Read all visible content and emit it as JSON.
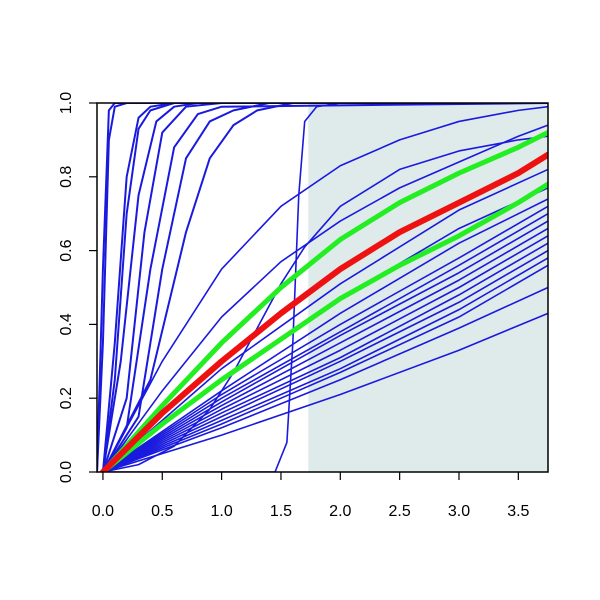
{
  "chart_data": {
    "type": "line",
    "title": "",
    "xlabel": "",
    "ylabel": "",
    "xlim": [
      -0.05,
      3.75
    ],
    "ylim": [
      0.0,
      1.0
    ],
    "xticks": [
      0.0,
      0.5,
      1.0,
      1.5,
      2.0,
      2.5,
      3.0,
      3.5
    ],
    "xtick_labels": [
      "0.0",
      "0.5",
      "1.0",
      "1.5",
      "2.0",
      "2.5",
      "3.0",
      "3.5"
    ],
    "yticks": [
      0.0,
      0.2,
      0.4,
      0.6,
      0.8,
      1.0
    ],
    "ytick_labels": [
      "0.0",
      "0.2",
      "0.4",
      "0.6",
      "0.8",
      "1.0"
    ],
    "grid": false,
    "shaded_region": {
      "x_start": 1.73,
      "x_end": 3.75,
      "color": "#dfeaea"
    },
    "colors": {
      "curves": "#1a1adf",
      "mean": "#ee1111",
      "bounds": "#22ee22",
      "axis": "#000000"
    },
    "curves": {
      "steep_sigmoid": [
        {
          "x": [
            -0.05,
            0.0,
            0.05,
            0.1,
            0.2,
            3.75
          ],
          "y": [
            0.0,
            0.55,
            0.98,
            1.0,
            1.0,
            1.0
          ]
        },
        {
          "x": [
            -0.05,
            0.0,
            0.05,
            0.1,
            0.2,
            3.75
          ],
          "y": [
            0.0,
            0.35,
            0.9,
            0.99,
            1.0,
            1.0
          ]
        }
      ],
      "fast_rise": [
        {
          "x": [
            0.0,
            0.1,
            0.2,
            0.3,
            0.4,
            0.6,
            3.75
          ],
          "y": [
            0.0,
            0.35,
            0.8,
            0.96,
            0.99,
            1.0,
            1.0
          ]
        },
        {
          "x": [
            0.0,
            0.1,
            0.2,
            0.3,
            0.4,
            0.6,
            3.75
          ],
          "y": [
            0.0,
            0.25,
            0.7,
            0.93,
            0.98,
            1.0,
            1.0
          ]
        },
        {
          "x": [
            0.0,
            0.15,
            0.3,
            0.45,
            0.6,
            0.8,
            3.75
          ],
          "y": [
            0.0,
            0.3,
            0.75,
            0.95,
            0.99,
            1.0,
            1.0
          ]
        },
        {
          "x": [
            0.0,
            0.2,
            0.35,
            0.5,
            0.7,
            1.0,
            3.75
          ],
          "y": [
            0.0,
            0.2,
            0.65,
            0.92,
            0.99,
            1.0,
            1.0
          ]
        },
        {
          "x": [
            0.0,
            0.2,
            0.4,
            0.6,
            0.8,
            1.0,
            3.75
          ],
          "y": [
            0.0,
            0.12,
            0.55,
            0.88,
            0.97,
            0.99,
            1.0
          ]
        },
        {
          "x": [
            0.0,
            0.3,
            0.5,
            0.7,
            0.9,
            1.1,
            1.4,
            3.75
          ],
          "y": [
            0.0,
            0.15,
            0.55,
            0.85,
            0.95,
            0.98,
            1.0,
            1.0
          ]
        },
        {
          "x": [
            0.0,
            0.4,
            0.7,
            0.9,
            1.1,
            1.3,
            1.6,
            3.75
          ],
          "y": [
            0.0,
            0.25,
            0.65,
            0.85,
            0.94,
            0.98,
            1.0,
            1.0
          ]
        }
      ],
      "step_jump": [
        {
          "x": [
            0.0,
            1.45,
            1.55,
            1.6,
            1.65,
            1.7,
            1.8,
            2.0,
            3.75
          ],
          "y": [
            0.0,
            0.0,
            0.08,
            0.35,
            0.75,
            0.95,
            0.99,
            1.0,
            1.0
          ]
        }
      ],
      "upper_concave": [
        {
          "x": [
            0.0,
            0.5,
            1.0,
            1.5,
            2.0,
            2.5,
            3.0,
            3.5,
            3.75
          ],
          "y": [
            0.0,
            0.3,
            0.55,
            0.72,
            0.83,
            0.9,
            0.95,
            0.98,
            0.99
          ]
        },
        {
          "x": [
            0.0,
            0.5,
            1.0,
            1.5,
            2.0,
            2.5,
            3.0,
            3.5,
            3.75
          ],
          "y": [
            0.0,
            0.22,
            0.42,
            0.57,
            0.68,
            0.77,
            0.84,
            0.91,
            0.94
          ]
        }
      ],
      "upper_bound": [
        {
          "x": [
            0.0,
            0.5,
            1.0,
            1.5,
            2.0,
            2.5,
            3.0,
            3.5,
            3.75
          ],
          "y": [
            0.0,
            0.18,
            0.35,
            0.5,
            0.63,
            0.73,
            0.81,
            0.88,
            0.92
          ]
        }
      ],
      "mean": [
        {
          "x": [
            0.0,
            0.5,
            1.0,
            1.5,
            2.0,
            2.5,
            3.0,
            3.5,
            3.75
          ],
          "y": [
            0.0,
            0.16,
            0.3,
            0.43,
            0.55,
            0.65,
            0.73,
            0.81,
            0.86
          ]
        }
      ],
      "lower_bound": [
        {
          "x": [
            0.0,
            0.5,
            1.0,
            1.5,
            2.0,
            2.5,
            3.0,
            3.5,
            3.75
          ],
          "y": [
            0.0,
            0.13,
            0.25,
            0.36,
            0.47,
            0.56,
            0.64,
            0.73,
            0.78
          ]
        }
      ],
      "mid_band": [
        {
          "x": [
            0.0,
            1.0,
            2.0,
            3.0,
            3.75
          ],
          "y": [
            0.0,
            0.28,
            0.51,
            0.71,
            0.82
          ]
        },
        {
          "x": [
            0.0,
            1.0,
            2.0,
            3.0,
            3.75
          ],
          "y": [
            0.0,
            0.25,
            0.47,
            0.66,
            0.77
          ]
        },
        {
          "x": [
            0.0,
            1.0,
            2.0,
            3.0,
            3.75
          ],
          "y": [
            0.0,
            0.22,
            0.43,
            0.62,
            0.74
          ]
        },
        {
          "x": [
            0.0,
            1.0,
            2.0,
            3.0,
            3.75
          ],
          "y": [
            0.0,
            0.21,
            0.4,
            0.58,
            0.72
          ]
        },
        {
          "x": [
            0.0,
            1.0,
            2.0,
            3.0,
            3.75
          ],
          "y": [
            0.0,
            0.2,
            0.38,
            0.56,
            0.7
          ]
        },
        {
          "x": [
            0.0,
            1.0,
            2.0,
            3.0,
            3.75
          ],
          "y": [
            0.0,
            0.19,
            0.37,
            0.54,
            0.68
          ]
        },
        {
          "x": [
            0.0,
            1.0,
            2.0,
            3.0,
            3.75
          ],
          "y": [
            0.0,
            0.18,
            0.35,
            0.52,
            0.66
          ]
        },
        {
          "x": [
            0.0,
            1.0,
            2.0,
            3.0,
            3.75
          ],
          "y": [
            0.0,
            0.17,
            0.33,
            0.5,
            0.64
          ]
        },
        {
          "x": [
            0.0,
            1.0,
            2.0,
            3.0,
            3.75
          ],
          "y": [
            0.0,
            0.16,
            0.31,
            0.48,
            0.62
          ]
        },
        {
          "x": [
            0.0,
            1.0,
            2.0,
            3.0,
            3.75
          ],
          "y": [
            0.0,
            0.15,
            0.3,
            0.46,
            0.6
          ]
        },
        {
          "x": [
            0.0,
            1.0,
            2.0,
            3.0,
            3.75
          ],
          "y": [
            0.0,
            0.14,
            0.28,
            0.44,
            0.58
          ]
        },
        {
          "x": [
            0.0,
            1.0,
            2.0,
            3.0,
            3.75
          ],
          "y": [
            0.0,
            0.13,
            0.27,
            0.42,
            0.56
          ]
        }
      ],
      "low_lines": [
        {
          "x": [
            0.0,
            1.0,
            2.0,
            3.0,
            3.75
          ],
          "y": [
            0.0,
            0.12,
            0.25,
            0.39,
            0.5
          ]
        },
        {
          "x": [
            0.0,
            1.0,
            2.0,
            3.0,
            3.75
          ],
          "y": [
            0.0,
            0.1,
            0.21,
            0.33,
            0.43
          ]
        }
      ],
      "sigmoid_mid": [
        {
          "x": [
            0.0,
            0.3,
            0.6,
            0.9,
            1.1,
            1.3,
            1.5,
            1.7,
            2.0,
            2.5,
            3.0,
            3.5,
            3.75
          ],
          "y": [
            0.0,
            0.02,
            0.07,
            0.17,
            0.27,
            0.39,
            0.51,
            0.61,
            0.72,
            0.82,
            0.87,
            0.9,
            0.91
          ]
        }
      ]
    }
  }
}
